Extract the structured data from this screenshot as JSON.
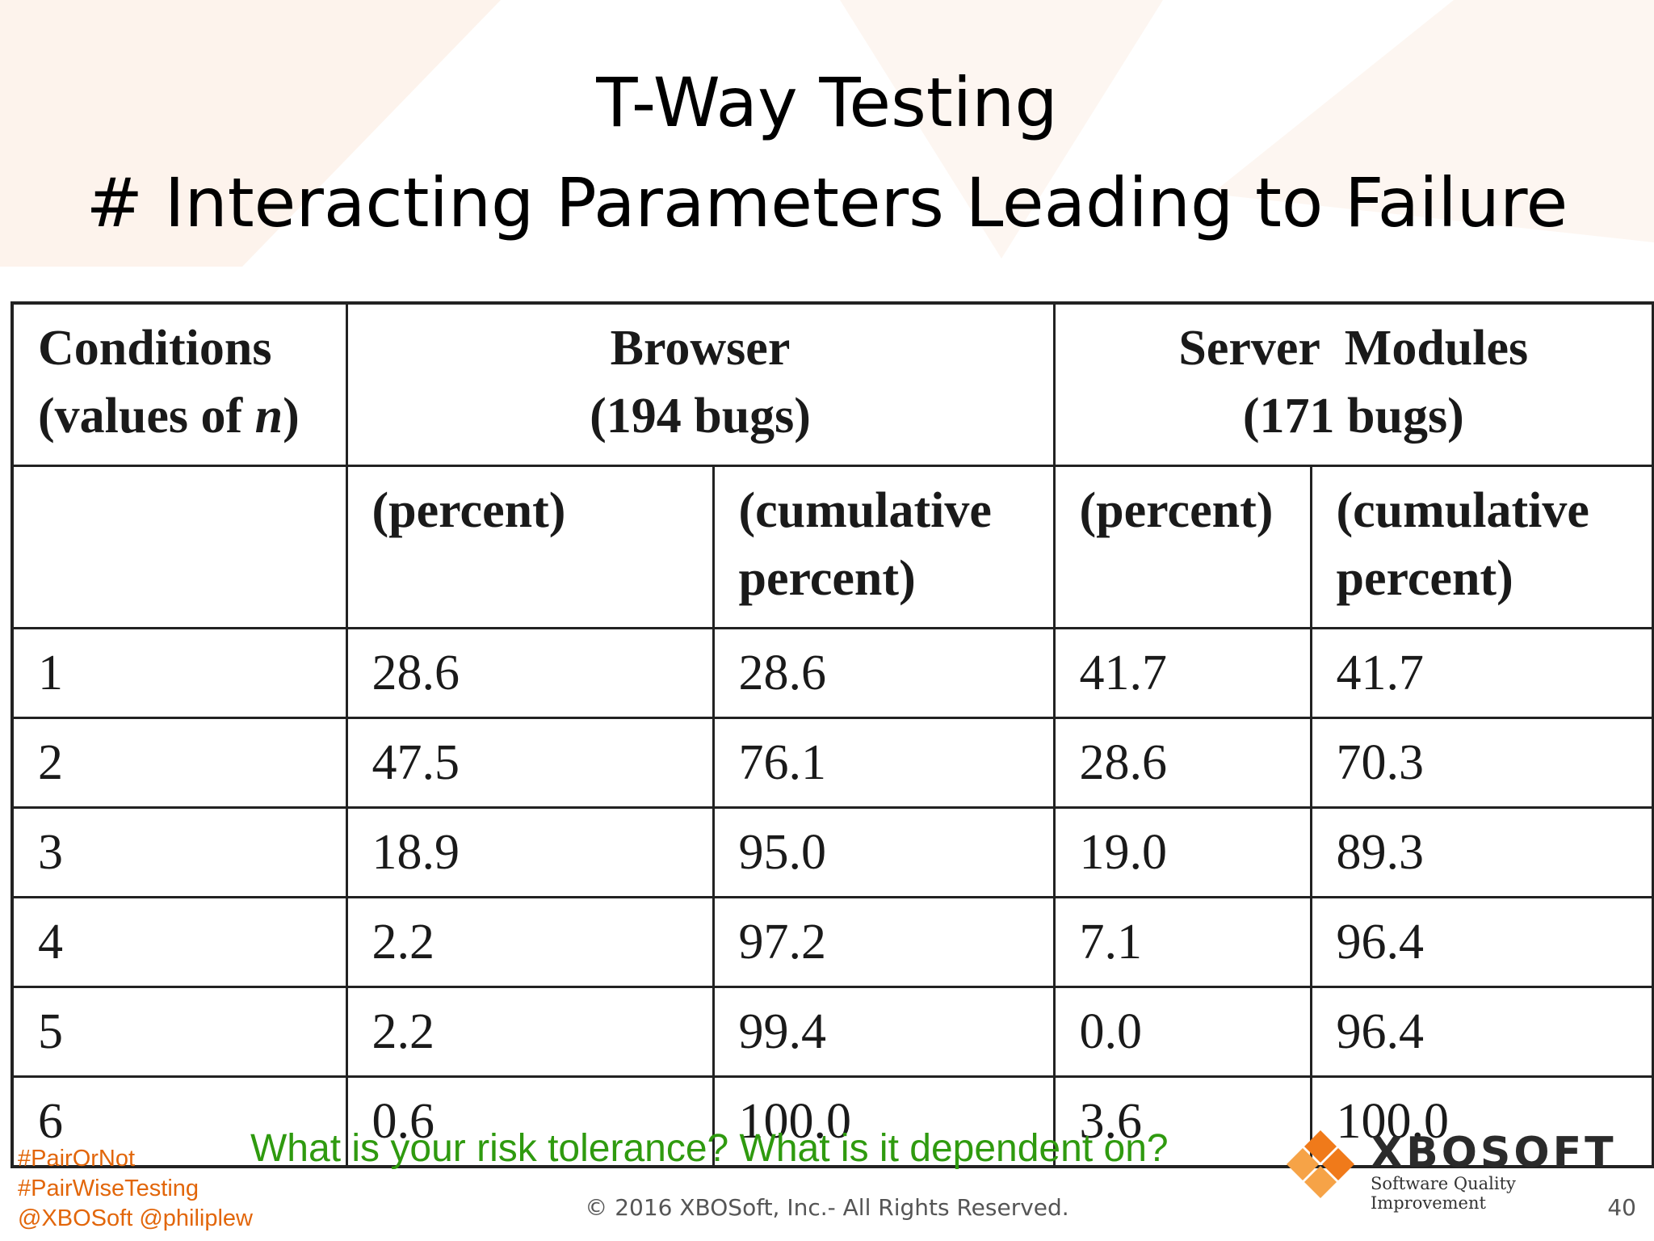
{
  "slide": {
    "title_line1": "T-Way Testing",
    "title_line2": "# Interacting Parameters Leading to Failure"
  },
  "table": {
    "header": {
      "conditions_line1": "Conditions",
      "conditions_line2_prefix": "(values of ",
      "conditions_var": "n",
      "conditions_line2_suffix": ")",
      "browser_line1": "Browser",
      "browser_line2": "(194 bugs)",
      "server_line1": "Server  Modules",
      "server_line2": "(171 bugs)",
      "percent": "(percent)",
      "cumulative_line1": "(cumulative",
      "cumulative_line2": "percent)"
    },
    "rows": [
      {
        "n": "1",
        "browser_pct": "28.6",
        "browser_cum": "28.6",
        "server_pct": "41.7",
        "server_cum": "41.7"
      },
      {
        "n": "2",
        "browser_pct": "47.5",
        "browser_cum": "76.1",
        "server_pct": "28.6",
        "server_cum": "70.3"
      },
      {
        "n": "3",
        "browser_pct": "18.9",
        "browser_cum": "95.0",
        "server_pct": "19.0",
        "server_cum": "89.3"
      },
      {
        "n": "4",
        "browser_pct": "2.2",
        "browser_cum": "97.2",
        "server_pct": "7.1",
        "server_cum": "96.4"
      },
      {
        "n": "5",
        "browser_pct": "2.2",
        "browser_cum": "99.4",
        "server_pct": "0.0",
        "server_cum": "96.4"
      },
      {
        "n": "6",
        "browser_pct": "0.6",
        "browser_cum": "100.0",
        "server_pct": "3.6",
        "server_cum": "100.0"
      }
    ]
  },
  "footer": {
    "question": "What is your risk tolerance? What is it dependent on?",
    "tags": [
      "#PairOrNot",
      "#PairWiseTesting",
      "@XBOSoft @philiplew"
    ],
    "copyright": "© 2016 XBOSoft, Inc.- All Rights Reserved.",
    "page_number": "40",
    "logo_name": "XBOSOFT",
    "logo_tagline": "Software Quality Improvement"
  },
  "colors": {
    "question": "#2f9a0f",
    "tags": "#e2660a",
    "logo_orange": "#f07a1a",
    "logo_orange_light": "#f6a347"
  }
}
